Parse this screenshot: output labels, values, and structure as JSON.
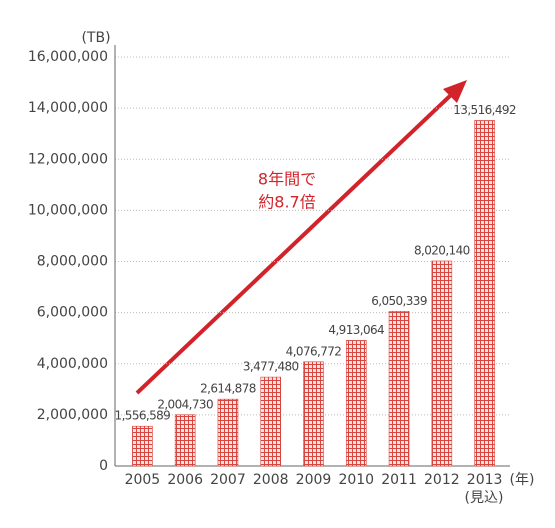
{
  "chart_data": {
    "type": "bar",
    "y_unit": "(TB)",
    "x_unit": "(年)",
    "category_note": "(見込)",
    "annotation": [
      "8年間で",
      "約8.7倍"
    ],
    "categories": [
      "2005",
      "2006",
      "2007",
      "2008",
      "2009",
      "2010",
      "2011",
      "2012",
      "2013"
    ],
    "values": [
      1556589,
      2004730,
      2614878,
      3477480,
      4076772,
      4913064,
      6050339,
      8020140,
      13516492
    ],
    "value_labels": [
      "1,556,589",
      "2,004,730",
      "2,614,878",
      "3,477,480",
      "4,076,772",
      "4,913,064",
      "6,050,339",
      "8,020,140",
      "13,516,492"
    ],
    "color": "#d9453f",
    "ylim": [
      0,
      16000000
    ],
    "yticks": [
      0,
      {
        "value": 2000000,
        "label": "2,000,000"
      },
      {
        "value": 4000000,
        "label": "4,000,000"
      },
      {
        "value": 6000000,
        "label": "6,000,000"
      },
      {
        "value": 8000000,
        "label": "8,000,000"
      },
      {
        "value": 10000000,
        "label": "10,000,000"
      },
      {
        "value": 12000000,
        "label": "12,000,000"
      },
      {
        "value": 14000000,
        "label": "14,000,000"
      },
      {
        "value": 16000000,
        "label": "16,000,000"
      }
    ],
    "grid": true
  }
}
